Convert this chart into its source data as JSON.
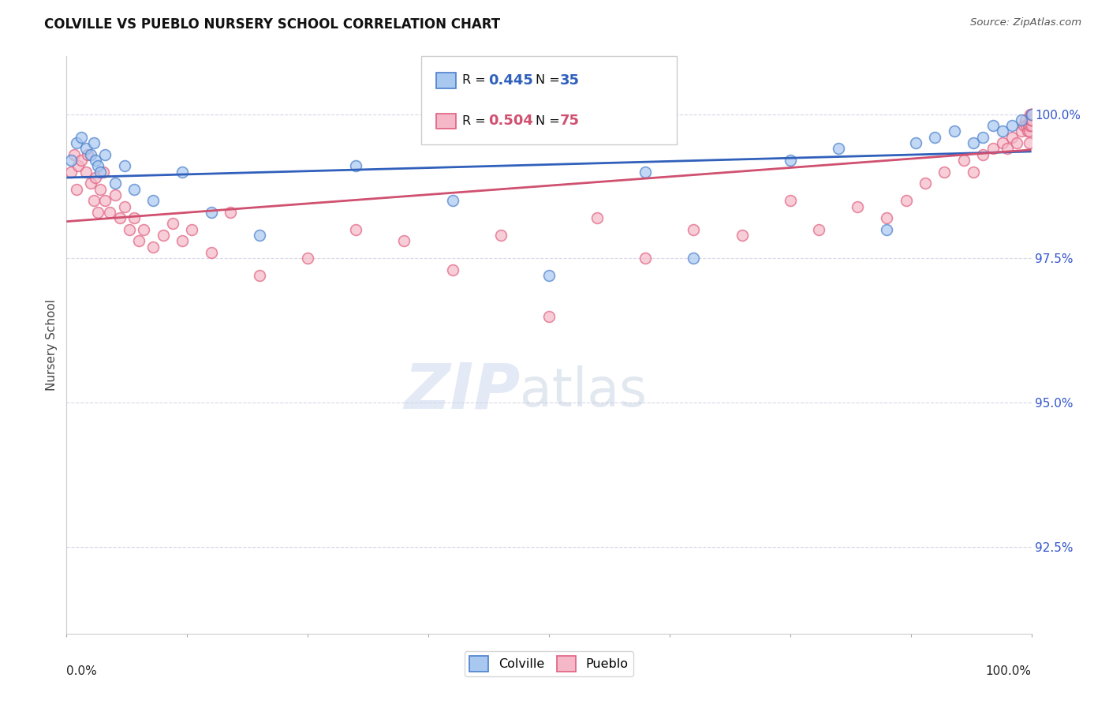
{
  "title": "COLVILLE VS PUEBLO NURSERY SCHOOL CORRELATION CHART",
  "source": "Source: ZipAtlas.com",
  "ylabel": "Nursery School",
  "xmin": 0.0,
  "xmax": 100.0,
  "ymin": 91.0,
  "ymax": 101.0,
  "yticks": [
    92.5,
    95.0,
    97.5,
    100.0
  ],
  "ytick_labels": [
    "92.5%",
    "95.0%",
    "97.5%",
    "100.0%"
  ],
  "colville_color": "#a8c8f0",
  "pueblo_color": "#f5b8c8",
  "colville_edge_color": "#4a7fcc",
  "pueblo_edge_color": "#e06080",
  "colville_line_color": "#3060bb",
  "pueblo_line_color": "#d05070",
  "colville_R": 0.445,
  "colville_N": 35,
  "pueblo_R": 0.504,
  "pueblo_N": 75,
  "colville_x": [
    0.5,
    1.0,
    1.5,
    2.0,
    2.5,
    2.8,
    3.0,
    3.2,
    3.5,
    4.0,
    5.0,
    6.0,
    7.0,
    9.0,
    12.0,
    15.0,
    20.0,
    30.0,
    40.0,
    50.0,
    60.0,
    65.0,
    75.0,
    80.0,
    85.0,
    88.0,
    90.0,
    92.0,
    94.0,
    95.0,
    96.0,
    97.0,
    98.0,
    99.0,
    100.0
  ],
  "colville_y": [
    99.2,
    99.5,
    99.6,
    99.4,
    99.3,
    99.5,
    99.2,
    99.1,
    99.0,
    99.3,
    98.8,
    99.1,
    98.7,
    98.5,
    99.0,
    98.3,
    97.9,
    99.1,
    98.5,
    97.2,
    99.0,
    97.5,
    99.2,
    99.4,
    98.0,
    99.5,
    99.6,
    99.7,
    99.5,
    99.6,
    99.8,
    99.7,
    99.8,
    99.9,
    100.0
  ],
  "pueblo_x": [
    0.5,
    0.8,
    1.0,
    1.2,
    1.5,
    2.0,
    2.2,
    2.5,
    2.8,
    3.0,
    3.2,
    3.5,
    3.8,
    4.0,
    4.5,
    5.0,
    5.5,
    6.0,
    6.5,
    7.0,
    7.5,
    8.0,
    9.0,
    10.0,
    11.0,
    12.0,
    13.0,
    15.0,
    17.0,
    20.0,
    25.0,
    30.0,
    35.0,
    40.0,
    45.0,
    50.0,
    55.0,
    60.0,
    65.0,
    70.0,
    75.0,
    78.0,
    82.0,
    85.0,
    87.0,
    89.0,
    91.0,
    93.0,
    94.0,
    95.0,
    96.0,
    97.0,
    97.5,
    98.0,
    98.5,
    99.0,
    99.2,
    99.4,
    99.5,
    99.6,
    99.7,
    99.8,
    99.8,
    99.9,
    99.9,
    99.9,
    100.0,
    100.0,
    100.0,
    100.0,
    100.0,
    100.0,
    100.0,
    100.0,
    100.0
  ],
  "pueblo_y": [
    99.0,
    99.3,
    98.7,
    99.1,
    99.2,
    99.0,
    99.3,
    98.8,
    98.5,
    98.9,
    98.3,
    98.7,
    99.0,
    98.5,
    98.3,
    98.6,
    98.2,
    98.4,
    98.0,
    98.2,
    97.8,
    98.0,
    97.7,
    97.9,
    98.1,
    97.8,
    98.0,
    97.6,
    98.3,
    97.2,
    97.5,
    98.0,
    97.8,
    97.3,
    97.9,
    96.5,
    98.2,
    97.5,
    98.0,
    97.9,
    98.5,
    98.0,
    98.4,
    98.2,
    98.5,
    98.8,
    99.0,
    99.2,
    99.0,
    99.3,
    99.4,
    99.5,
    99.4,
    99.6,
    99.5,
    99.7,
    99.8,
    99.9,
    99.8,
    99.7,
    99.8,
    99.7,
    99.5,
    99.9,
    99.8,
    100.0,
    99.9,
    99.8,
    100.0,
    99.9,
    100.0,
    99.9,
    100.0,
    99.9,
    100.0
  ],
  "watermark_zip": "ZIP",
  "watermark_atlas": "atlas",
  "background_color": "#ffffff",
  "grid_color": "#d8d8e8",
  "marker_size": 100,
  "marker_linewidth": 1.2,
  "fig_width": 14.06,
  "fig_height": 8.92
}
